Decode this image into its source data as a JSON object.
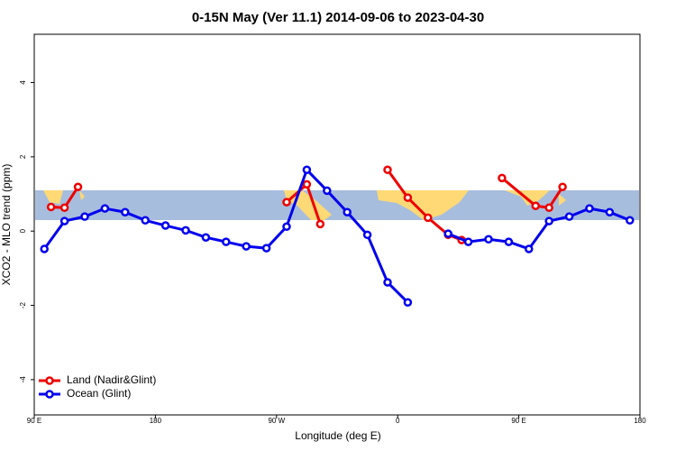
{
  "chart_data": {
    "type": "line",
    "title": "0-15N May (Ver 11.1)   2014-09-06 to 2023-04-30",
    "x_label": "Longitude (deg E)",
    "y_label": "XCO2 - MLO trend (ppm)",
    "xlim": [
      90,
      540
    ],
    "xticks": [
      {
        "value": 90,
        "label": "90 E"
      },
      {
        "value": 180,
        "label": "180"
      },
      {
        "value": 270,
        "label": "90 W"
      },
      {
        "value": 360,
        "label": "0"
      },
      {
        "value": 450,
        "label": "90 E"
      },
      {
        "value": 540,
        "label": "180"
      }
    ],
    "ylim": [
      -4.95,
      5.3
    ],
    "yticks": [
      -4,
      -2,
      0,
      2,
      4
    ],
    "legend": "bottom-left",
    "series": [
      {
        "name": "Land (Nadir&Glint)",
        "color": "#ee0000",
        "x": [
          102.5,
          112.5,
          122.5,
          200,
          277.5,
          292.5,
          302.5,
          330,
          352.5,
          367.5,
          382.5,
          397.5,
          407.5,
          420,
          437.5,
          462.5,
          472.5,
          482.5
        ],
        "values": [
          0.65,
          0.63,
          1.19,
          null,
          0.78,
          1.26,
          0.19,
          null,
          1.65,
          0.9,
          0.36,
          -0.1,
          -0.24,
          null,
          1.43,
          0.68,
          0.63,
          1.19
        ]
      },
      {
        "name": "Ocean (Glint)",
        "color": "#0000ee",
        "x": [
          97.5,
          112.5,
          127.5,
          142.5,
          157.5,
          172.5,
          187.5,
          202.5,
          217.5,
          232.5,
          247.5,
          262.5,
          277.5,
          292.5,
          307.5,
          322.5,
          337.5,
          352.5,
          367.5,
          382.5,
          397.5,
          412.5,
          427.5,
          442.5,
          457.5,
          472.5,
          487.5,
          502.5,
          517.5,
          532.5
        ],
        "values": [
          -0.48,
          0.27,
          0.39,
          0.61,
          0.51,
          0.29,
          0.15,
          0.02,
          -0.17,
          -0.29,
          -0.41,
          -0.46,
          0.12,
          1.65,
          1.09,
          0.51,
          -0.1,
          -1.38,
          -1.92,
          null,
          -0.07,
          -0.29,
          -0.22,
          -0.29,
          -0.48,
          0.27,
          0.39,
          0.61,
          0.51,
          0.29
        ]
      }
    ]
  }
}
